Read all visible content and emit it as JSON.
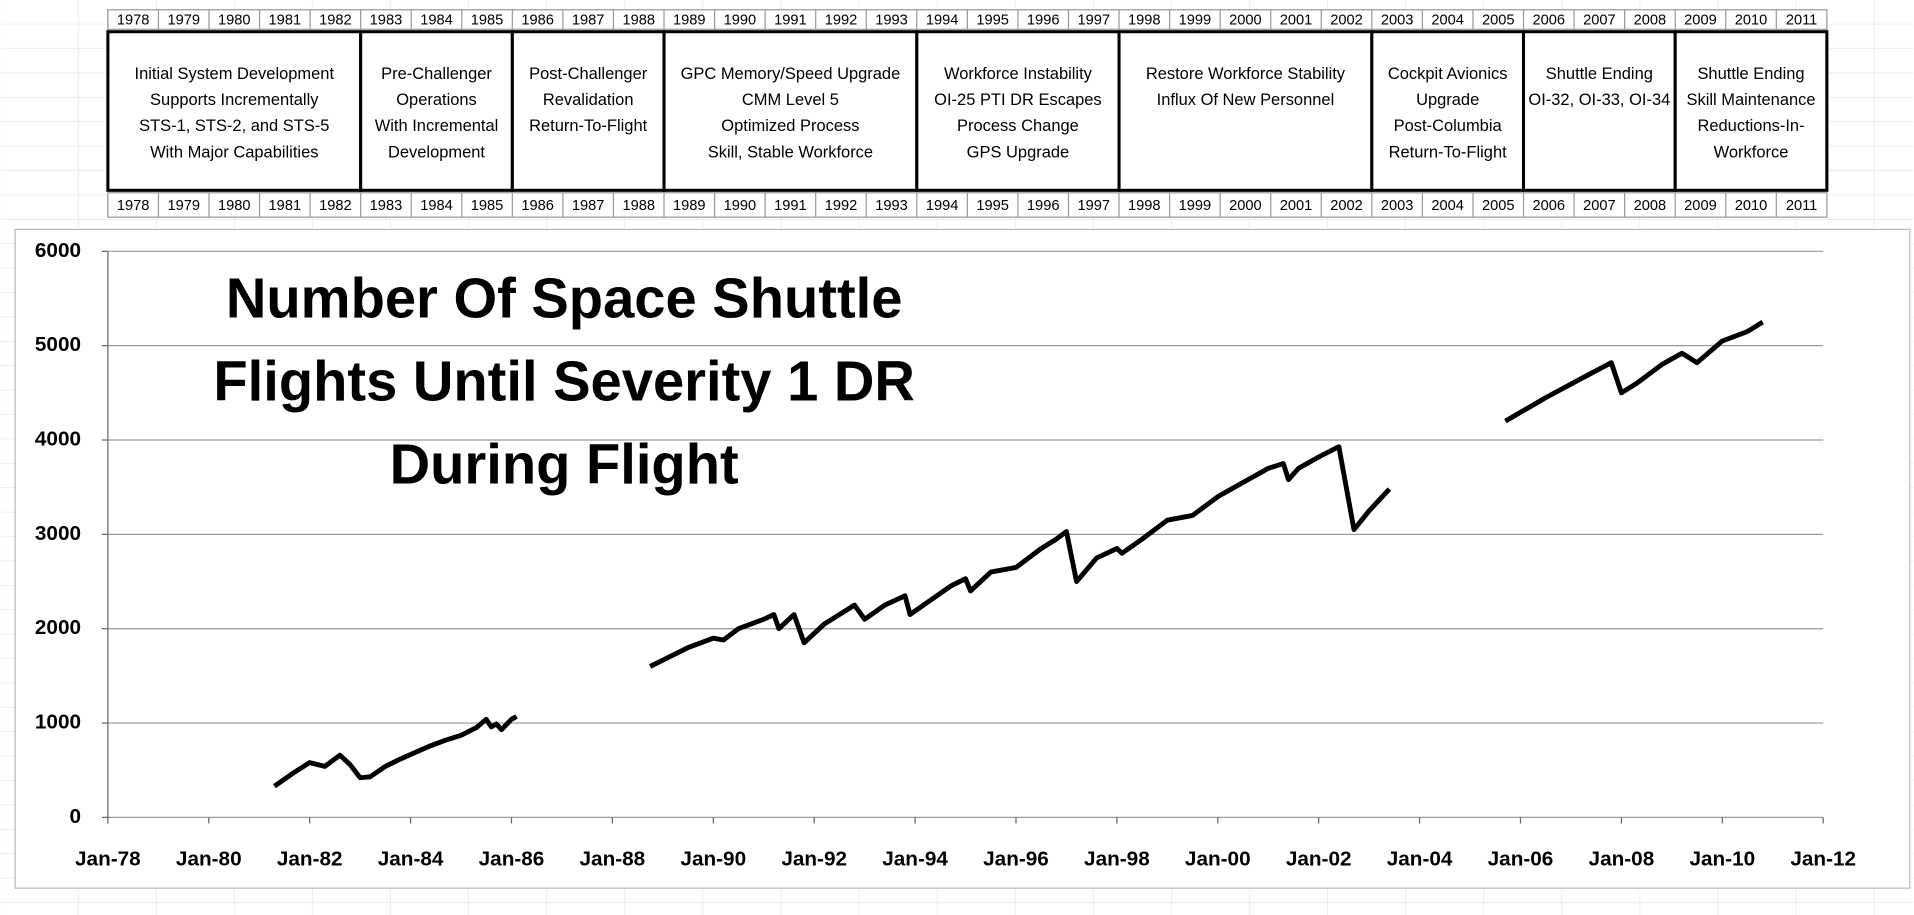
{
  "timeline": {
    "years": [
      "1978",
      "1979",
      "1980",
      "1981",
      "1982",
      "1983",
      "1984",
      "1985",
      "1986",
      "1987",
      "1988",
      "1989",
      "1990",
      "1991",
      "1992",
      "1993",
      "1994",
      "1995",
      "1996",
      "1997",
      "1998",
      "1999",
      "2000",
      "2001",
      "2002",
      "2003",
      "2004",
      "2005",
      "2006",
      "2007",
      "2008",
      "2009",
      "2010",
      "2011"
    ],
    "phases": [
      {
        "lines": [
          "Initial System Development",
          "Supports Incrementally",
          "STS-1, STS-2, and STS-5",
          "With Major Capabilities"
        ]
      },
      {
        "lines": [
          "Pre-Challenger",
          "Operations",
          "With Incremental",
          "Development"
        ]
      },
      {
        "lines": [
          "Post-Challenger",
          "Revalidation",
          "Return-To-Flight"
        ]
      },
      {
        "lines": [
          "GPC Memory/Speed Upgrade",
          "CMM Level 5",
          "Optimized Process",
          "Skill, Stable Workforce"
        ]
      },
      {
        "lines": [
          "Workforce Instability",
          "OI-25 PTI DR Escapes",
          "Process Change",
          "GPS Upgrade"
        ]
      },
      {
        "lines": [
          "Restore Workforce Stability",
          "Influx Of New Personnel"
        ]
      },
      {
        "lines": [
          "Cockpit Avionics",
          "Upgrade",
          "Post-Columbia",
          "Return-To-Flight"
        ]
      },
      {
        "lines": [
          "Shuttle Ending",
          "OI-32, OI-33, OI-34"
        ]
      },
      {
        "lines": [
          "Shuttle Ending",
          "Skill Maintenance",
          "Reductions-In-",
          "Workforce"
        ]
      }
    ]
  },
  "chart_data": {
    "type": "line",
    "title": [
      "Number Of Space Shuttle",
      "Flights Until Severity 1 DR",
      "During Flight"
    ],
    "color": "#000000",
    "grid": true,
    "xlim": [
      1978,
      2012
    ],
    "ylim": [
      0,
      6000
    ],
    "yticks": [
      0,
      1000,
      2000,
      3000,
      4000,
      5000,
      6000
    ],
    "xticks": [
      {
        "value": 1978,
        "label": "Jan-78"
      },
      {
        "value": 1980,
        "label": "Jan-80"
      },
      {
        "value": 1982,
        "label": "Jan-82"
      },
      {
        "value": 1984,
        "label": "Jan-84"
      },
      {
        "value": 1986,
        "label": "Jan-86"
      },
      {
        "value": 1988,
        "label": "Jan-88"
      },
      {
        "value": 1990,
        "label": "Jan-90"
      },
      {
        "value": 1992,
        "label": "Jan-92"
      },
      {
        "value": 1994,
        "label": "Jan-94"
      },
      {
        "value": 1996,
        "label": "Jan-96"
      },
      {
        "value": 1998,
        "label": "Jan-98"
      },
      {
        "value": 2000,
        "label": "Jan-00"
      },
      {
        "value": 2002,
        "label": "Jan-02"
      },
      {
        "value": 2004,
        "label": "Jan-04"
      },
      {
        "value": 2006,
        "label": "Jan-06"
      },
      {
        "value": 2008,
        "label": "Jan-08"
      },
      {
        "value": 2010,
        "label": "Jan-10"
      },
      {
        "value": 2012,
        "label": "Jan-12"
      }
    ],
    "x": [
      1981.3,
      1981.7,
      1982.0,
      1982.3,
      1982.6,
      1982.8,
      1983.0,
      1983.2,
      1983.5,
      1983.8,
      1984.1,
      1984.4,
      1984.7,
      1985.0,
      1985.3,
      1985.5,
      1985.6,
      1985.7,
      1985.8,
      1986.0,
      1986.1,
      null,
      1988.75,
      1989.5,
      1990.0,
      1990.2,
      1990.5,
      1991.0,
      1991.2,
      1991.3,
      1991.6,
      1991.8,
      1992.2,
      1992.5,
      1992.8,
      1993.0,
      1993.4,
      1993.8,
      1993.9,
      1994.3,
      1994.7,
      1995.0,
      1995.1,
      1995.5,
      1996.0,
      1996.5,
      1996.8,
      1997.0,
      1997.2,
      1997.6,
      1998.0,
      1998.1,
      1998.5,
      1999.0,
      1999.5,
      2000.0,
      2000.5,
      2001.0,
      2001.3,
      2001.4,
      2001.6,
      2002.0,
      2002.4,
      2002.7,
      2003.0,
      2003.4,
      null,
      2005.7,
      2006.5,
      2007.2,
      2007.8,
      2008.0,
      2008.3,
      2008.8,
      2009.2,
      2009.5,
      2010.0,
      2010.5,
      2010.8
    ],
    "values": [
      330,
      480,
      580,
      540,
      660,
      560,
      420,
      430,
      540,
      620,
      690,
      760,
      820,
      870,
      950,
      1040,
      960,
      990,
      930,
      1040,
      1070,
      null,
      1600,
      1800,
      1900,
      1880,
      2000,
      2100,
      2150,
      2000,
      2150,
      1850,
      2050,
      2150,
      2250,
      2100,
      2250,
      2350,
      2150,
      2300,
      2450,
      2530,
      2400,
      2600,
      2650,
      2850,
      2950,
      3030,
      2500,
      2750,
      2850,
      2800,
      2950,
      3150,
      3200,
      3400,
      3550,
      3700,
      3750,
      3580,
      3700,
      3820,
      3930,
      3050,
      3250,
      3480,
      null,
      4200,
      4450,
      4650,
      4820,
      4500,
      4600,
      4800,
      4920,
      4820,
      5050,
      5150,
      5250
    ]
  }
}
